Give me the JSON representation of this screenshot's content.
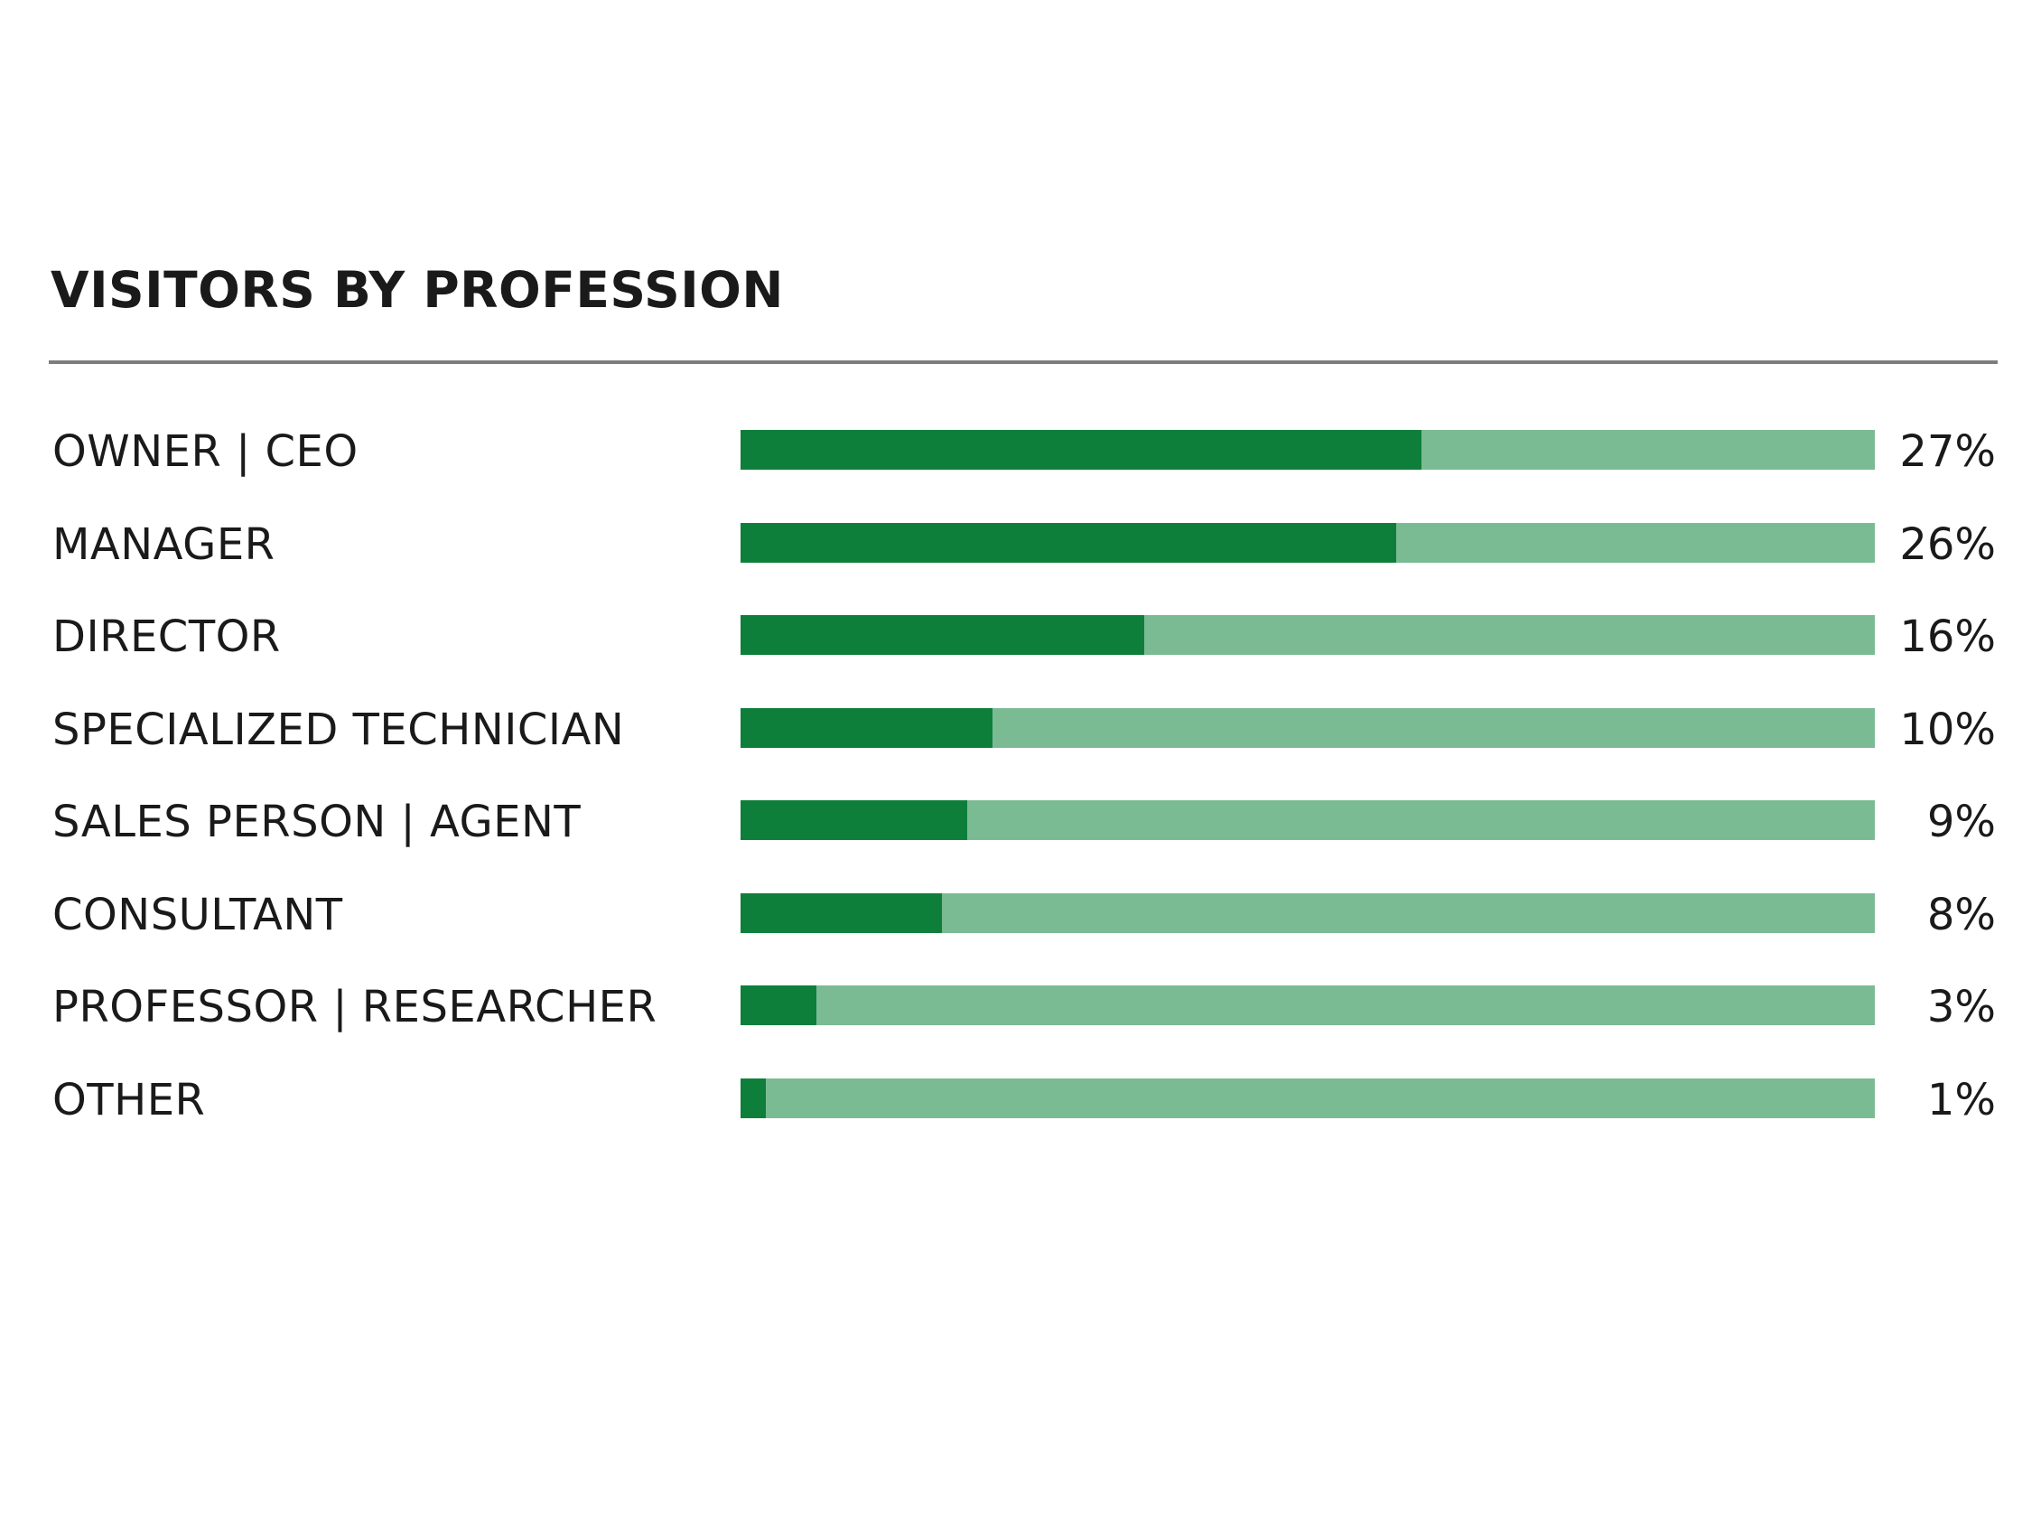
{
  "chart_data": {
    "type": "bar",
    "orientation": "horizontal",
    "title": "VISITORS BY PROFESSION",
    "categories": [
      "OWNER | CEO",
      "MANAGER",
      "DIRECTOR",
      "SPECIALIZED TECHNICIAN",
      "SALES PERSON | AGENT",
      "CONSULTANT",
      "PROFESSOR | RESEARCHER",
      "OTHER"
    ],
    "values": [
      27,
      26,
      16,
      10,
      9,
      8,
      3,
      1
    ],
    "value_labels": [
      "27%",
      "26%",
      "16%",
      "10%",
      "9%",
      "8%",
      "3%",
      "1%"
    ],
    "xlim": [
      0,
      45
    ],
    "xlabel": "",
    "ylabel": "",
    "grid": false,
    "legend": "none",
    "colors": {
      "bar": "#0e7f3a",
      "track": "#7bbb94",
      "text": "#1a1a1a",
      "divider": "#7d7d7d"
    }
  }
}
